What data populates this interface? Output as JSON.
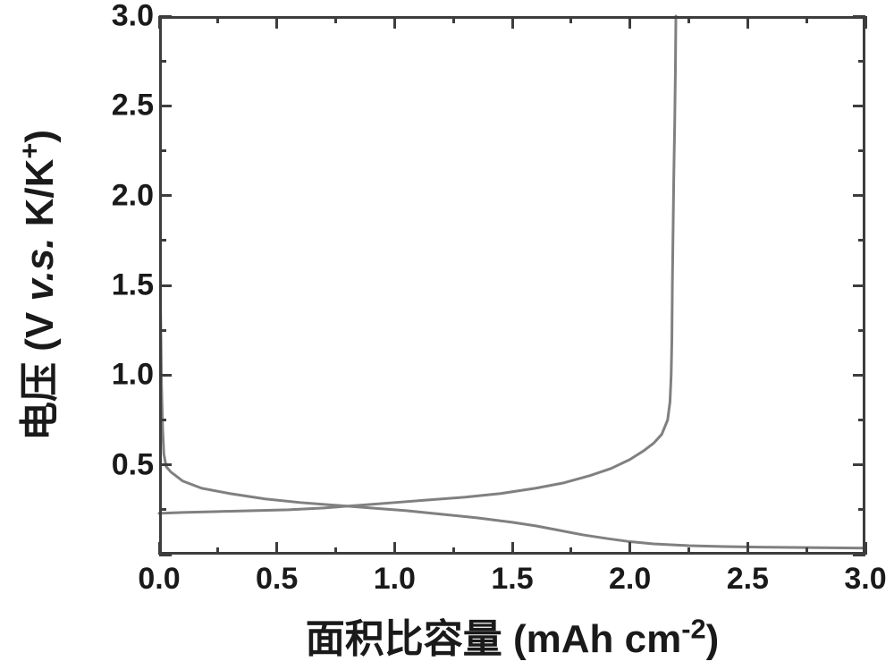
{
  "chart": {
    "type": "line",
    "background_color": "#ffffff",
    "axis_color": "#3d3d3d",
    "axis_linewidth": 3,
    "major_tick_len": 14,
    "minor_tick_len": 8,
    "tick_width": 3,
    "xlabel_cn": "面积比容量",
    "xlabel_unit_prefix": "(mAh cm",
    "xlabel_unit_exp": "-2",
    "xlabel_unit_suffix": ")",
    "ylabel_cn": "电压",
    "ylabel_unit_prefix": "(V ",
    "ylabel_vs": "v.s.",
    "ylabel_unit_mid": " K/K",
    "ylabel_unit_exp": "+",
    "ylabel_unit_suffix": ")",
    "label_fontsize": 44,
    "tick_fontsize": 34,
    "tick_label_color": "#1a1a1a",
    "xlim": [
      0.0,
      3.0
    ],
    "ylim": [
      0.0,
      3.0
    ],
    "xtick_major_step": 0.5,
    "xtick_minor_step": 0.25,
    "ytick_major_step": 0.5,
    "ytick_minor_step": 0.25,
    "xtick_labels": [
      "0.0",
      "0.5",
      "1.0",
      "1.5",
      "2.0",
      "2.5",
      "3.0"
    ],
    "ytick_labels": [
      "0.5",
      "1.0",
      "1.5",
      "2.0",
      "2.5",
      "3.0"
    ],
    "series": [
      {
        "name": "discharge",
        "color": "#808080",
        "linewidth": 3,
        "points": [
          [
            0.005,
            1.5
          ],
          [
            0.01,
            0.95
          ],
          [
            0.015,
            0.7
          ],
          [
            0.02,
            0.56
          ],
          [
            0.03,
            0.49
          ],
          [
            0.05,
            0.46
          ],
          [
            0.1,
            0.41
          ],
          [
            0.18,
            0.37
          ],
          [
            0.3,
            0.34
          ],
          [
            0.45,
            0.31
          ],
          [
            0.6,
            0.29
          ],
          [
            0.75,
            0.275
          ],
          [
            0.9,
            0.26
          ],
          [
            1.05,
            0.245
          ],
          [
            1.2,
            0.225
          ],
          [
            1.35,
            0.205
          ],
          [
            1.5,
            0.18
          ],
          [
            1.6,
            0.16
          ],
          [
            1.7,
            0.135
          ],
          [
            1.8,
            0.11
          ],
          [
            1.9,
            0.09
          ],
          [
            2.0,
            0.072
          ],
          [
            2.1,
            0.06
          ],
          [
            2.25,
            0.05
          ],
          [
            2.4,
            0.045
          ],
          [
            2.55,
            0.042
          ],
          [
            2.7,
            0.04
          ],
          [
            2.85,
            0.038
          ],
          [
            3.0,
            0.036
          ]
        ]
      },
      {
        "name": "charge",
        "color": "#808080",
        "linewidth": 3,
        "points": [
          [
            0.0,
            0.23
          ],
          [
            0.1,
            0.235
          ],
          [
            0.25,
            0.24
          ],
          [
            0.4,
            0.245
          ],
          [
            0.55,
            0.25
          ],
          [
            0.7,
            0.26
          ],
          [
            0.85,
            0.275
          ],
          [
            1.0,
            0.29
          ],
          [
            1.15,
            0.305
          ],
          [
            1.3,
            0.32
          ],
          [
            1.45,
            0.34
          ],
          [
            1.6,
            0.37
          ],
          [
            1.72,
            0.4
          ],
          [
            1.83,
            0.44
          ],
          [
            1.92,
            0.48
          ],
          [
            2.0,
            0.53
          ],
          [
            2.06,
            0.58
          ],
          [
            2.1,
            0.62
          ],
          [
            2.135,
            0.67
          ],
          [
            2.16,
            0.75
          ],
          [
            2.17,
            0.85
          ],
          [
            2.175,
            1.0
          ],
          [
            2.178,
            1.2
          ],
          [
            2.18,
            1.5
          ],
          [
            2.183,
            1.8
          ],
          [
            2.186,
            2.1
          ],
          [
            2.19,
            2.4
          ],
          [
            2.193,
            2.7
          ],
          [
            2.195,
            3.0
          ]
        ]
      }
    ]
  }
}
